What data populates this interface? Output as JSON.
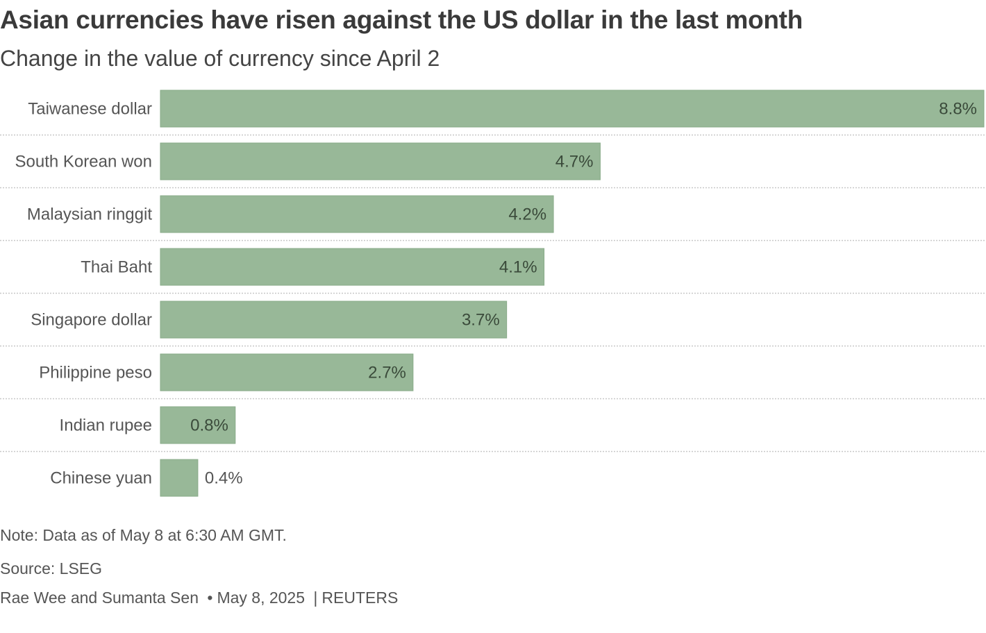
{
  "title": "Asian currencies have risen against the US dollar in the last month",
  "subtitle": "Change in the value of currency since April 2",
  "colors": {
    "bar": "#98b898",
    "bar_stroke": "#89ab89",
    "label": "#555555",
    "value_inside": "#3a4a3a",
    "value_outside": "#555555",
    "gridline": "#c8c8c8"
  },
  "chart_data": {
    "type": "bar",
    "orientation": "horizontal",
    "title": "Asian currencies have risen against the US dollar in the last month",
    "subtitle": "Change in the value of currency since April 2",
    "categories": [
      "Taiwanese dollar",
      "South Korean won",
      "Malaysian ringgit",
      "Thai Baht",
      "Singapore dollar",
      "Philippine peso",
      "Indian rupee",
      "Chinese yuan"
    ],
    "values": [
      8.8,
      4.7,
      4.2,
      4.1,
      3.7,
      2.7,
      0.8,
      0.4
    ],
    "value_labels": [
      "8.8%",
      "4.7%",
      "4.2%",
      "4.1%",
      "3.7%",
      "2.7%",
      "0.8%",
      "0.4%"
    ],
    "unit": "%",
    "xlim": [
      0,
      8.8
    ],
    "xlabel": "",
    "ylabel": "",
    "grid": false
  },
  "footer": {
    "note": "Note: Data as of May 8 at 6:30 AM GMT.",
    "source": "Source: LSEG",
    "authors": "Rae Wee and Sumanta Sen",
    "bullet": "•",
    "date": "May 8, 2025",
    "divider": "|",
    "outlet": "REUTERS"
  }
}
